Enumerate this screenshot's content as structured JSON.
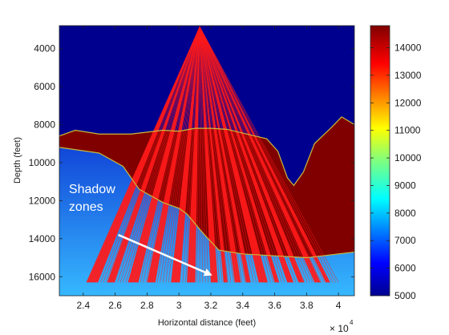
{
  "chart_data": {
    "type": "heatmap",
    "title": "",
    "xlabel": "Horizontal distance (feet)",
    "ylabel": "Depth (feet)",
    "xlim": [
      2.25,
      4.1
    ],
    "ylim": [
      17000,
      2800
    ],
    "x_exponent_label": "× 10",
    "x_exponent_power": "4",
    "x_ticks": [
      2.4,
      2.6,
      2.8,
      3,
      3.2,
      3.4,
      3.6,
      3.8,
      4
    ],
    "x_tick_labels": [
      "2.4",
      "2.6",
      "2.8",
      "3",
      "3.2",
      "3.4",
      "3.6",
      "3.8",
      "4"
    ],
    "y_ticks": [
      4000,
      6000,
      8000,
      10000,
      12000,
      14000,
      16000
    ],
    "y_tick_labels": [
      "4000",
      "6000",
      "8000",
      "10000",
      "12000",
      "14000",
      "16000"
    ],
    "colorbar": {
      "range": [
        5000,
        14800
      ],
      "ticks": [
        5000,
        6000,
        7000,
        8000,
        9000,
        10000,
        11000,
        12000,
        13000,
        14000
      ],
      "tick_labels": [
        "5000",
        "6000",
        "7000",
        "8000",
        "9000",
        "10000",
        "11000",
        "12000",
        "13000",
        "14000"
      ]
    },
    "source": {
      "x": 3.13,
      "depth": 2850
    },
    "salt_top": [
      [
        2.25,
        8600
      ],
      [
        2.35,
        8300
      ],
      [
        2.5,
        8500
      ],
      [
        2.7,
        8500
      ],
      [
        2.9,
        8300
      ],
      [
        3.0,
        8350
      ],
      [
        3.1,
        8200
      ],
      [
        3.2,
        8200
      ],
      [
        3.3,
        8250
      ],
      [
        3.45,
        8550
      ],
      [
        3.55,
        8750
      ],
      [
        3.62,
        9400
      ],
      [
        3.68,
        10800
      ],
      [
        3.72,
        11200
      ],
      [
        3.78,
        10500
      ],
      [
        3.85,
        9000
      ],
      [
        3.95,
        8200
      ],
      [
        4.02,
        7600
      ],
      [
        4.1,
        8000
      ]
    ],
    "salt_base": [
      [
        2.25,
        9200
      ],
      [
        2.5,
        9500
      ],
      [
        2.65,
        10200
      ],
      [
        2.75,
        11400
      ],
      [
        2.9,
        12100
      ],
      [
        3.0,
        12400
      ],
      [
        3.05,
        12700
      ],
      [
        3.15,
        13700
      ],
      [
        3.25,
        14600
      ],
      [
        3.4,
        14800
      ],
      [
        3.6,
        14900
      ],
      [
        3.8,
        15000
      ],
      [
        4.0,
        14800
      ],
      [
        4.1,
        14700
      ]
    ],
    "ray_targets_x": [
      2.42,
      2.55,
      2.68,
      2.8,
      2.95,
      3.05,
      3.2,
      3.28,
      3.35,
      3.42,
      3.5,
      3.6,
      3.68,
      3.75,
      3.85,
      3.92,
      4.0
    ],
    "ray_floor_depth": 16300,
    "annotation": {
      "text_lines": [
        "Shadow",
        "zones"
      ],
      "text_anchor": {
        "x": 2.31,
        "depth": 11600
      },
      "arrow_from": {
        "x": 2.62,
        "depth": 13800
      },
      "arrow_to": {
        "x": 3.2,
        "depth": 15900
      }
    },
    "colors": {
      "water": "#00008f",
      "sediment_top": "#0a2fd0",
      "sediment_bottom": "#36b8ff",
      "salt": "#800000",
      "rays": "#ff1a1a",
      "interface_line": "#c8b93a",
      "arrow": "#ffffff"
    }
  }
}
